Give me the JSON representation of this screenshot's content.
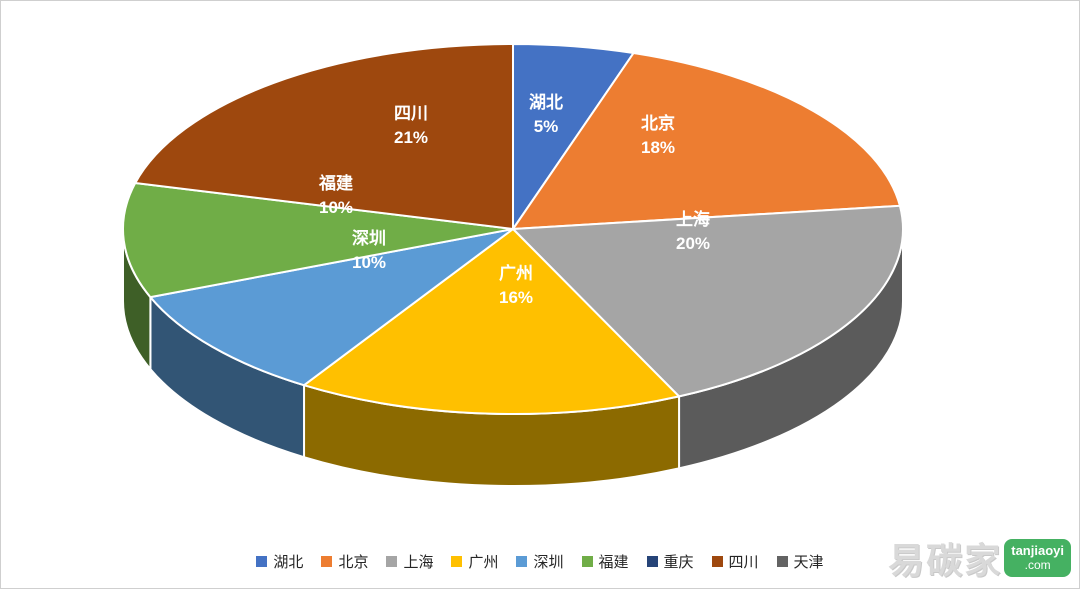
{
  "chart_data": {
    "type": "pie",
    "style": "3d",
    "title": "",
    "labels": [
      "湖北",
      "北京",
      "上海",
      "广州",
      "深圳",
      "福建",
      "重庆",
      "四川",
      "天津"
    ],
    "values": [
      5,
      18,
      20,
      16,
      10,
      10,
      0,
      21,
      0
    ],
    "unit": "%",
    "colors": [
      "#4472C4",
      "#ED7D31",
      "#A5A5A5",
      "#FFC000",
      "#5B9BD5",
      "#70AD47",
      "#264478",
      "#9E480E",
      "#636363"
    ],
    "slice_percent_labels": [
      "5%",
      "18%",
      "20%",
      "16%",
      "10%",
      "10%",
      "",
      "21%",
      ""
    ],
    "legend_position": "bottom",
    "legend_items": [
      "湖北",
      "北京",
      "上海",
      "广州",
      "深圳",
      "福建",
      "重庆",
      "四川",
      "天津"
    ]
  },
  "watermark": {
    "text": "易碳家",
    "badge_line1": "tanjiaoyi",
    "badge_line2": ".com",
    "badge_color": "#45b162"
  }
}
